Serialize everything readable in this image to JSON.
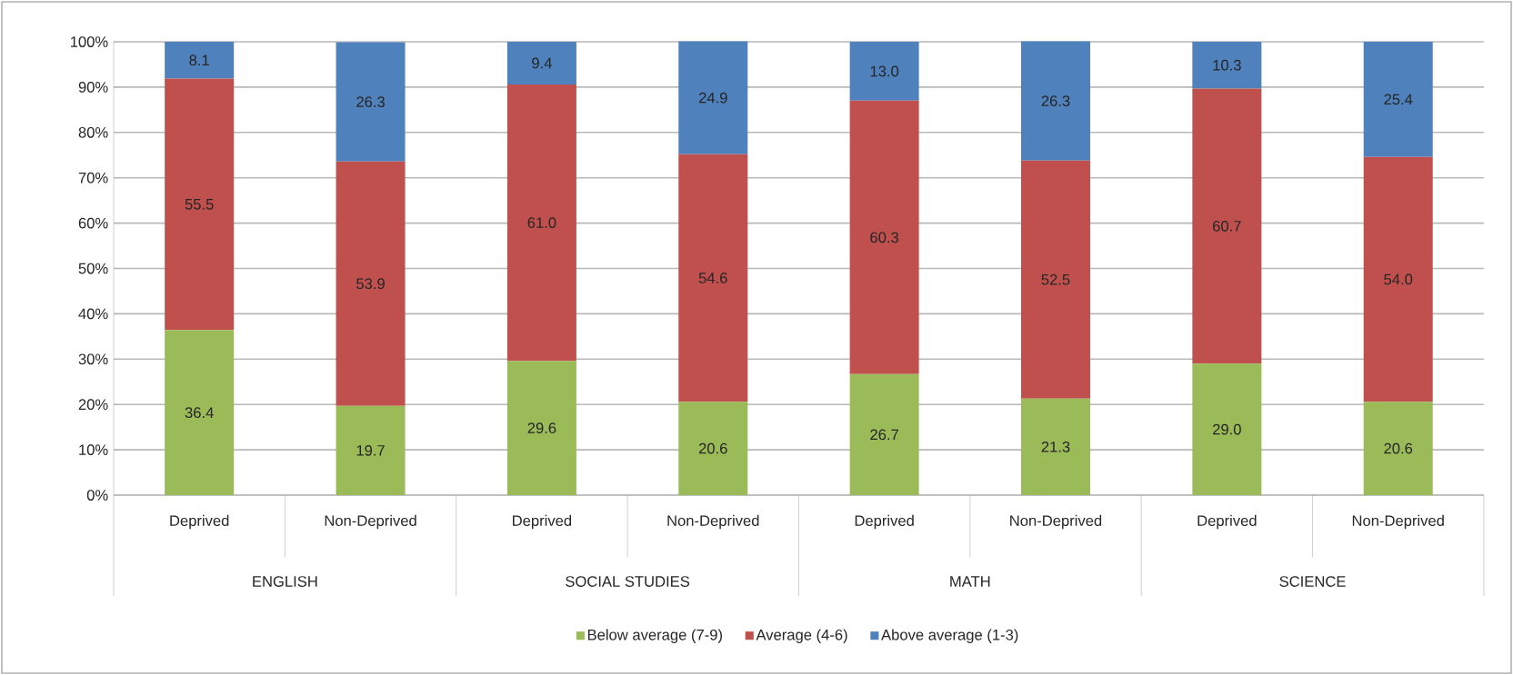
{
  "chart_data": {
    "type": "bar",
    "stacked": true,
    "grid": "y",
    "legend": "bottom",
    "categories": [
      "Deprived",
      "Non-Deprived",
      "Deprived",
      "Non-Deprived",
      "Deprived",
      "Non-Deprived",
      "Deprived",
      "Non-Deprived"
    ],
    "annotations": [
      "ENGLISH",
      "SOCIAL STUDIES",
      "MATH",
      "SCIENCE"
    ],
    "series": [
      {
        "name": "Below average (7-9)",
        "color": "#9bbb59",
        "values": [
          36.4,
          19.7,
          29.6,
          20.6,
          26.7,
          21.3,
          29.0,
          20.6
        ],
        "value_labels": [
          "36.4",
          "19.7",
          "29.6",
          "20.6",
          "26.7",
          "21.3",
          "29.0",
          "20.6"
        ]
      },
      {
        "name": "Average (4-6)",
        "color": "#c0504d",
        "values": [
          55.5,
          53.9,
          61.0,
          54.6,
          60.3,
          52.5,
          60.7,
          54.0
        ],
        "value_labels": [
          "55.5",
          "53.9",
          "61.0",
          "54.6",
          "60.3",
          "52.5",
          "60.7",
          "54.0"
        ]
      },
      {
        "name": "Above average (1-3)",
        "color": "#4f81bd",
        "values": [
          8.1,
          26.3,
          9.4,
          24.9,
          13.0,
          26.3,
          10.3,
          25.4
        ],
        "value_labels": [
          "8.1",
          "26.3",
          "9.4",
          "24.9",
          "13.0",
          "26.3",
          "10.3",
          "25.4"
        ]
      }
    ],
    "ylim": [
      0,
      100
    ],
    "yticks": [
      {
        "value": 0,
        "label": "0%"
      },
      {
        "value": 10,
        "label": "10%"
      },
      {
        "value": 20,
        "label": "20%"
      },
      {
        "value": 30,
        "label": "30%"
      },
      {
        "value": 40,
        "label": "40%"
      },
      {
        "value": 50,
        "label": "50%"
      },
      {
        "value": 60,
        "label": "60%"
      },
      {
        "value": 70,
        "label": "70%"
      },
      {
        "value": 80,
        "label": "80%"
      },
      {
        "value": 90,
        "label": "90%"
      },
      {
        "value": 100,
        "label": "100%"
      }
    ]
  }
}
